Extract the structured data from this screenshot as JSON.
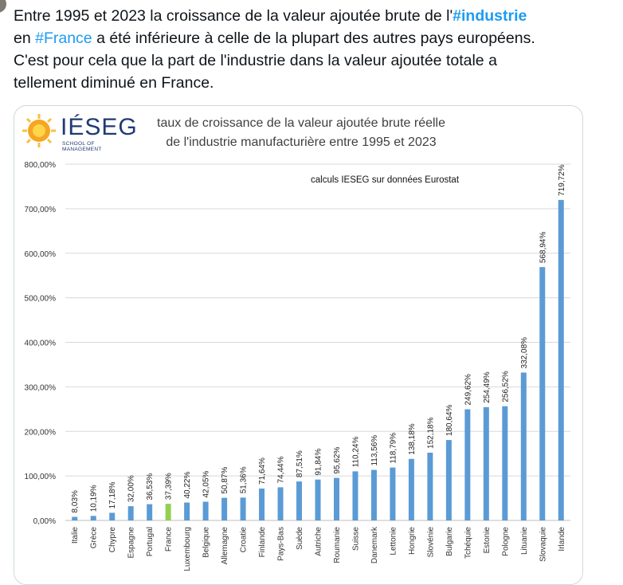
{
  "tweet": {
    "line1_pre": "Entre 1995 et 2023 la croissance de la valeur ajoutée brute de l'",
    "hashtag_industrie": "#industrie",
    "line2_pre": "en ",
    "hashtag_france": "#France",
    "line2_post": " a été inférieure à celle de la plupart des autres pays européens.",
    "line3": "C'est pour cela que la part de l'industrie dans la valeur ajoutée totale a",
    "line4": "tellement diminué en France."
  },
  "logo": {
    "name": "IÉSEG",
    "subtitle": "SCHOOL OF MANAGEMENT"
  },
  "colors": {
    "bar": "#5b9bd5",
    "bar_highlight": "#92d050",
    "hashtag": "#1d9bf0",
    "grid": "#d9d9d9"
  },
  "chart_data": {
    "type": "bar",
    "title_line1": "taux de croissance de la valeur ajoutée brute réelle",
    "title_line2": "de l'industrie manufacturière entre 1995 et 2023",
    "annotation": "calculs IESEG sur données Eurostat",
    "xlabel": "",
    "ylabel": "",
    "ylim": [
      0,
      800
    ],
    "yticks": [
      "0,00%",
      "100,00%",
      "200,00%",
      "300,00%",
      "400,00%",
      "500,00%",
      "600,00%",
      "700,00%",
      "800,00%"
    ],
    "grid": "horizontal",
    "legend": "none",
    "highlight_category": "France",
    "categories": [
      "Italie",
      "Grèce",
      "Chypre",
      "Espagne",
      "Portugal",
      "France",
      "Luxembourg",
      "Belgique",
      "Allemagne",
      "Croatie",
      "Finlande",
      "Pays-Bas",
      "Suède",
      "Autriche",
      "Roumanie",
      "Suisse",
      "Danemark",
      "Lettonie",
      "Hongrie",
      "Slovénie",
      "Bulgarie",
      "Tchéquie",
      "Estonie",
      "Pologne",
      "Lituanie",
      "Slovaquie",
      "Irlande"
    ],
    "values": [
      8.03,
      10.19,
      17.18,
      32.0,
      36.53,
      37.39,
      40.22,
      42.05,
      50.87,
      51.36,
      71.64,
      74.44,
      87.51,
      91.84,
      95.62,
      110.24,
      113.56,
      118.79,
      138.18,
      152.18,
      180.64,
      249.62,
      254.49,
      256.52,
      332.08,
      568.94,
      719.72
    ],
    "value_labels": [
      "8,03%",
      "10,19%",
      "17,18%",
      "32,00%",
      "36,53%",
      "37,39%",
      "40,22%",
      "42,05%",
      "50,87%",
      "51,36%",
      "71,64%",
      "74,44%",
      "87,51%",
      "91,84%",
      "95,62%",
      "110,24%",
      "113,56%",
      "118,79%",
      "138,18%",
      "152,18%",
      "180,64%",
      "249,62%",
      "254,49%",
      "256,52%",
      "332,08%",
      "568,94%",
      "719,72%"
    ]
  }
}
